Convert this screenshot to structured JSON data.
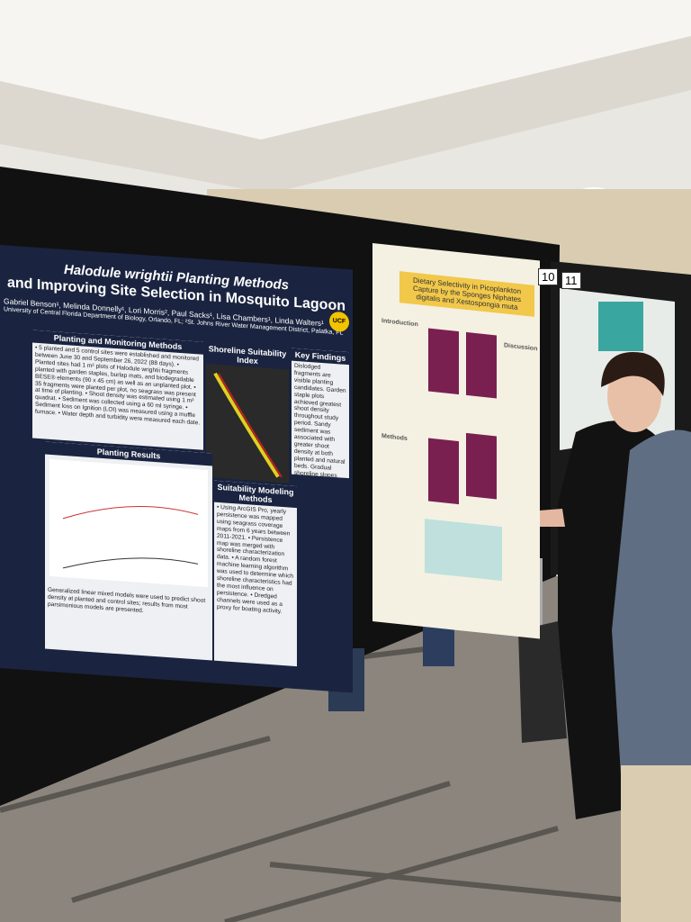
{
  "poster_left": {
    "title_line1": "Halodule wrightii Planting Methods",
    "title_line2": "and Improving Site Selection in Mosquito Lagoon",
    "authors": "Gabriel Benson¹, Melinda Donnelly¹, Lori Morris², Paul Sacks¹, Lisa Chambers¹, Linda Walters¹",
    "affiliation": "University of Central Florida Department of Biology, Orlando, FL; ²St. Johns River Water Management District, Palatka, FL",
    "logo": "UCF",
    "sections": [
      {
        "heading": "Planting and Monitoring Methods",
        "text": "• 5 planted and 5 control sites were established and monitored between June 30 and September 26, 2022 (88 days). • Planted sites had 1 m² plots of Halodule wrightii fragments planted with garden staples, burlap mats, and biodegradable BESE® elements (90 x 45 cm) as well as an unplanted plot. • 35 fragments were planted per plot, no seagrass was present at time of planting. • Shoot density was estimated using 1 m² quadrat. • Sediment was collected using a 60 ml syringe. • Sediment loss on Ignition (LOI) was measured using a muffle furnace. • Water depth and turbidity were measured each date."
      },
      {
        "heading": "Shoreline Suitability Index",
        "text": ""
      },
      {
        "heading": "Key Findings",
        "text": "Dislodged fragments are visible planting candidates. Garden staple plots achieved greatest shoot density throughout study period. Sandy sediment was associated with greater shoot density at both planted and natural beds. Gradual shoreline slopes were associated with increased persistence."
      },
      {
        "heading": "Planting Results",
        "text": "Generalized linear mixed models were used to predict shoot density at planted and control sites; results from most parsimonious models are presented."
      },
      {
        "heading": "Suitability Modeling Methods",
        "text": "• Using ArcGIS Pro, yearly persistence was mapped using seagrass coverage maps from 6 years between 2011-2021. • Persistence map was merged with shoreline characterization data. • A random forest machine learning algorithm was used to determine which shoreline characteristics had the most influence on persistence. • Dredged channels were used as a proxy for boating activity."
      }
    ]
  },
  "poster_right": {
    "title": "Dietary Selectivity in Picoplankton Capture by the Sponges Niphates digitalis and Xestospongia muta",
    "sections": [
      "Introduction",
      "Methods",
      "Discussion"
    ]
  },
  "board_numbers": [
    "10",
    "11"
  ]
}
